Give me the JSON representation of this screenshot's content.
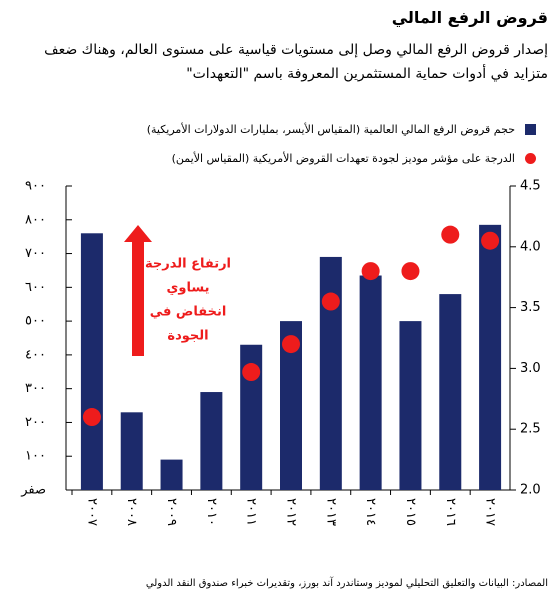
{
  "chart_data": {
    "type": "bar",
    "title": "قروض الرفع المالي",
    "subtitle": "إصدار قروض الرفع المالي وصل إلى مستويات قياسية على مستوى العالم، وهناك ضعف متزايد في أدوات حماية المستثمرين المعروفة باسم \"التعهدات\"",
    "categories": [
      "٢٠٠٧",
      "٢٠٠٨",
      "٢٠٠٩",
      "٢٠١٠",
      "٢٠١١",
      "٢٠١٢",
      "٢٠١٣",
      "٢٠١٤",
      "٢٠١٥",
      "٢٠١٦",
      "٢٠١٧"
    ],
    "series": [
      {
        "name": "حجم قروض الرفع المالي العالمية (المقياس الأيسر، بمليارات الدولارات الأمريكية)",
        "color": "#1c2a6b",
        "type": "bar",
        "values": [
          760,
          230,
          90,
          290,
          430,
          500,
          690,
          635,
          500,
          580,
          785
        ]
      },
      {
        "name": "الدرجة على مؤشر موديز لجودة تعهدات القروض الأمريكية (المقياس الأيمن)",
        "color": "#ee1c1c",
        "type": "scatter",
        "axis": "y2",
        "values": [
          2.6,
          null,
          null,
          null,
          2.97,
          3.2,
          3.55,
          3.8,
          3.8,
          4.1,
          4.05
        ]
      }
    ],
    "ylim": [
      0,
      900
    ],
    "yticks": [
      {
        "value": 0,
        "label": "صفر"
      },
      {
        "value": 100,
        "label": "١٠٠"
      },
      {
        "value": 200,
        "label": "٢٠٠"
      },
      {
        "value": 300,
        "label": "٣٠٠"
      },
      {
        "value": 400,
        "label": "٤٠٠"
      },
      {
        "value": 500,
        "label": "٥٠٠"
      },
      {
        "value": 600,
        "label": "٦٠٠"
      },
      {
        "value": 700,
        "label": "٧٠٠"
      },
      {
        "value": 800,
        "label": "٨٠٠"
      },
      {
        "value": 900,
        "label": "٩٠٠"
      }
    ],
    "y2lim": [
      2,
      4.5
    ],
    "y2ticks": [
      {
        "value": 2,
        "label": "2.0"
      },
      2.5,
      {
        "value": 3,
        "label": "3.0"
      },
      3.5,
      {
        "value": 4,
        "label": "4.0"
      },
      4.5
    ],
    "annotations": [
      "ارتفاع الدرجة",
      "يساوي",
      "انخفاض في",
      "الجودة"
    ],
    "source": "المصادر: البيانات والتعليق التحليلي لموديز وستاندرد آند بورز، وتقديرات خبراء صندوق النقد الدولي"
  }
}
